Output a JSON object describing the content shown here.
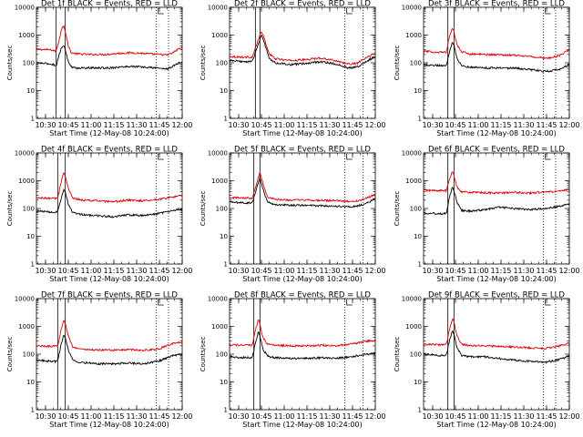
{
  "colors": {
    "events": "#000000",
    "lld": "#dd0000",
    "axes": "#000000"
  },
  "xlabel": "Start Time (12-May-08 10:24:00)",
  "ylabel": "Counts/sec",
  "chart_data": [
    {
      "type": "line",
      "title": "Det 1f BLACK = Events, RED = LLD",
      "xlabel": "Start Time (12-May-08 10:24:00)",
      "ylabel": "Counts/sec",
      "yscale": "log",
      "ylim": [
        1,
        10000
      ],
      "xlim_min_after_start": [
        0,
        96
      ],
      "yticks": [
        "1",
        "10",
        "100",
        "1000",
        "10000"
      ],
      "xticks": [
        "10:30",
        "10:45",
        "11:00",
        "11:15",
        "11:30",
        "11:45",
        "12:00"
      ],
      "marker_solid_min": [
        13,
        19
      ],
      "marker_dotted_min": [
        79,
        87
      ],
      "series": [
        {
          "color": "#dd0000",
          "x": [
            0,
            10,
            13,
            15,
            17,
            18,
            19,
            21,
            23,
            27,
            35,
            45,
            55,
            62,
            70,
            80,
            86,
            90,
            94,
            96
          ],
          "y": [
            310,
            290,
            260,
            700,
            2000,
            2200,
            1400,
            400,
            230,
            210,
            200,
            200,
            220,
            230,
            220,
            200,
            190,
            230,
            330,
            340
          ]
        },
        {
          "color": "#000000",
          "x": [
            0,
            10,
            13,
            15,
            17,
            18,
            19,
            21,
            23,
            27,
            35,
            45,
            55,
            62,
            70,
            80,
            86,
            90,
            94,
            96
          ],
          "y": [
            100,
            90,
            80,
            200,
            400,
            420,
            300,
            110,
            70,
            65,
            65,
            65,
            70,
            75,
            70,
            65,
            60,
            75,
            100,
            105
          ]
        }
      ]
    },
    {
      "type": "line",
      "title": "Det 2f BLACK = Events, RED = LLD",
      "xlabel": "Start Time (12-May-08 10:24:00)",
      "ylabel": "Counts/sec",
      "yscale": "log",
      "ylim": [
        1,
        10000
      ],
      "xlim_min_after_start": [
        0,
        96
      ],
      "yticks": [
        "1",
        "10",
        "100",
        "1000",
        "10000"
      ],
      "xticks": [
        "10:30",
        "10:45",
        "11:00",
        "11:15",
        "11:30",
        "11:45",
        "12:00"
      ],
      "marker_solid_min": [
        17,
        20
      ],
      "marker_dotted_min": [
        76,
        88
      ],
      "series": [
        {
          "color": "#dd0000",
          "x": [
            0,
            8,
            15,
            19,
            21,
            23,
            26,
            30,
            40,
            50,
            60,
            70,
            78,
            84,
            90,
            96
          ],
          "y": [
            170,
            160,
            160,
            700,
            1400,
            700,
            220,
            140,
            120,
            130,
            150,
            120,
            90,
            95,
            150,
            230
          ]
        },
        {
          "color": "#000000",
          "x": [
            0,
            8,
            15,
            19,
            21,
            23,
            26,
            30,
            40,
            50,
            60,
            70,
            78,
            84,
            90,
            96
          ],
          "y": [
            120,
            110,
            110,
            500,
            1000,
            500,
            150,
            100,
            85,
            95,
            110,
            90,
            65,
            70,
            110,
            170
          ]
        }
      ]
    },
    {
      "type": "line",
      "title": "Det 3f BLACK = Events, RED = LLD",
      "xlabel": "Start Time (12-May-08 10:24:00)",
      "ylabel": "Counts/sec",
      "yscale": "log",
      "ylim": [
        1,
        10000
      ],
      "xlim_min_after_start": [
        0,
        96
      ],
      "yticks": [
        "1",
        "10",
        "100",
        "1000",
        "10000"
      ],
      "xticks": [
        "10:30",
        "10:45",
        "11:00",
        "11:15",
        "11:30",
        "11:45",
        "12:00"
      ],
      "marker_solid_min": [
        16,
        20
      ],
      "marker_dotted_min": [
        79,
        87
      ],
      "series": [
        {
          "color": "#dd0000",
          "x": [
            0,
            10,
            15,
            17,
            19,
            20,
            22,
            25,
            30,
            40,
            50,
            60,
            70,
            78,
            84,
            90,
            96
          ],
          "y": [
            260,
            240,
            240,
            900,
            1800,
            1300,
            450,
            250,
            210,
            200,
            195,
            190,
            170,
            150,
            150,
            190,
            300
          ]
        },
        {
          "color": "#000000",
          "x": [
            0,
            10,
            15,
            17,
            19,
            20,
            22,
            25,
            30,
            40,
            50,
            60,
            70,
            78,
            84,
            90,
            96
          ],
          "y": [
            85,
            80,
            80,
            250,
            550,
            450,
            150,
            80,
            70,
            66,
            65,
            64,
            58,
            50,
            50,
            60,
            85
          ]
        }
      ]
    },
    {
      "type": "line",
      "title": "Det 4f BLACK = Events, RED = LLD",
      "xlabel": "Start Time (12-May-08 10:24:00)",
      "ylabel": "Counts/sec",
      "yscale": "log",
      "ylim": [
        1,
        10000
      ],
      "xlim_min_after_start": [
        0,
        96
      ],
      "yticks": [
        "1",
        "10",
        "100",
        "1000",
        "10000"
      ],
      "xticks": [
        "10:30",
        "10:45",
        "11:00",
        "11:15",
        "11:30",
        "11:45",
        "12:00"
      ],
      "marker_solid_min": [
        14,
        19
      ],
      "marker_dotted_min": [
        79,
        87
      ],
      "series": [
        {
          "color": "#dd0000",
          "x": [
            0,
            10,
            14,
            16,
            18,
            19,
            21,
            24,
            30,
            40,
            50,
            60,
            70,
            80,
            90,
            96
          ],
          "y": [
            240,
            230,
            230,
            800,
            2000,
            1500,
            500,
            240,
            200,
            190,
            170,
            200,
            190,
            210,
            260,
            290
          ]
        },
        {
          "color": "#000000",
          "x": [
            0,
            10,
            14,
            16,
            18,
            19,
            21,
            24,
            30,
            40,
            50,
            60,
            70,
            80,
            90,
            96
          ],
          "y": [
            80,
            75,
            75,
            200,
            500,
            400,
            140,
            70,
            60,
            55,
            50,
            60,
            55,
            65,
            85,
            95
          ]
        }
      ]
    },
    {
      "type": "line",
      "title": "Det 5f BLACK = Events, RED = LLD",
      "xlabel": "Start Time (12-May-08 10:24:00)",
      "ylabel": "Counts/sec",
      "yscale": "log",
      "ylim": [
        1,
        10000
      ],
      "xlim_min_after_start": [
        0,
        96
      ],
      "yticks": [
        "1",
        "10",
        "100",
        "1000",
        "10000"
      ],
      "xticks": [
        "10:30",
        "10:45",
        "11:00",
        "11:15",
        "11:30",
        "11:45",
        "12:00"
      ],
      "marker_solid_min": [
        16,
        20
      ],
      "marker_dotted_min": [
        76,
        88
      ],
      "series": [
        {
          "color": "#dd0000",
          "x": [
            0,
            8,
            15,
            18,
            20,
            22,
            25,
            30,
            40,
            50,
            60,
            70,
            78,
            84,
            90,
            96
          ],
          "y": [
            250,
            240,
            240,
            900,
            2000,
            800,
            260,
            210,
            200,
            200,
            195,
            190,
            180,
            185,
            230,
            330
          ]
        },
        {
          "color": "#000000",
          "x": [
            0,
            8,
            15,
            18,
            20,
            22,
            25,
            30,
            40,
            50,
            60,
            70,
            78,
            84,
            90,
            96
          ],
          "y": [
            170,
            160,
            160,
            600,
            1300,
            500,
            170,
            140,
            130,
            130,
            125,
            120,
            115,
            120,
            150,
            230
          ]
        }
      ]
    },
    {
      "type": "line",
      "title": "Det 6f BLACK = Events, RED = LLD",
      "xlabel": "Start Time (12-May-08 10:24:00)",
      "ylabel": "Counts/sec",
      "yscale": "log",
      "ylim": [
        1,
        10000
      ],
      "xlim_min_after_start": [
        0,
        96
      ],
      "yticks": [
        "1",
        "10",
        "100",
        "1000",
        "10000"
      ],
      "xticks": [
        "10:30",
        "10:45",
        "11:00",
        "11:15",
        "11:30",
        "11:45",
        "12:00"
      ],
      "marker_solid_min": [
        16,
        20
      ],
      "marker_dotted_min": [
        79,
        87
      ],
      "series": [
        {
          "color": "#dd0000",
          "x": [
            0,
            10,
            15,
            17,
            19,
            20,
            22,
            25,
            30,
            40,
            50,
            60,
            70,
            80,
            90,
            96
          ],
          "y": [
            450,
            440,
            440,
            1100,
            2200,
            1500,
            600,
            400,
            380,
            370,
            360,
            380,
            360,
            390,
            420,
            480
          ]
        },
        {
          "color": "#000000",
          "x": [
            0,
            10,
            15,
            17,
            19,
            20,
            22,
            25,
            30,
            40,
            50,
            60,
            70,
            80,
            90,
            96
          ],
          "y": [
            70,
            65,
            65,
            250,
            600,
            450,
            160,
            85,
            80,
            90,
            110,
            100,
            90,
            100,
            120,
            150
          ]
        }
      ]
    },
    {
      "type": "line",
      "title": "Det 7f BLACK = Events, RED = LLD",
      "xlabel": "Start Time (12-May-08 10:24:00)",
      "ylabel": "Counts/sec",
      "yscale": "log",
      "ylim": [
        1,
        10000
      ],
      "xlim_min_after_start": [
        0,
        96
      ],
      "yticks": [
        "1",
        "10",
        "100",
        "1000",
        "10000"
      ],
      "xticks": [
        "10:30",
        "10:45",
        "11:00",
        "11:15",
        "11:30",
        "11:45",
        "12:00"
      ],
      "marker_solid_min": [
        14,
        19
      ],
      "marker_dotted_min": [
        79,
        87
      ],
      "series": [
        {
          "color": "#dd0000",
          "x": [
            0,
            10,
            14,
            16,
            18,
            19,
            21,
            24,
            30,
            40,
            50,
            60,
            70,
            80,
            90,
            96
          ],
          "y": [
            200,
            190,
            190,
            700,
            1700,
            1300,
            450,
            180,
            150,
            140,
            140,
            145,
            140,
            150,
            240,
            270
          ]
        },
        {
          "color": "#000000",
          "x": [
            0,
            10,
            14,
            16,
            18,
            19,
            21,
            24,
            30,
            40,
            50,
            60,
            70,
            80,
            90,
            96
          ],
          "y": [
            60,
            55,
            55,
            200,
            500,
            400,
            140,
            60,
            50,
            45,
            45,
            48,
            45,
            55,
            90,
            100
          ]
        }
      ]
    },
    {
      "type": "line",
      "title": "Det 8f BLACK = Events, RED = LLD",
      "xlabel": "Start Time (12-May-08 10:24:00)",
      "ylabel": "Counts/sec",
      "yscale": "log",
      "ylim": [
        1,
        10000
      ],
      "xlim_min_after_start": [
        0,
        96
      ],
      "yticks": [
        "1",
        "10",
        "100",
        "1000",
        "10000"
      ],
      "xticks": [
        "10:30",
        "10:45",
        "11:00",
        "11:15",
        "11:30",
        "11:45",
        "12:00"
      ],
      "marker_solid_min": [
        16,
        20
      ],
      "marker_dotted_min": [
        76,
        88
      ],
      "series": [
        {
          "color": "#dd0000",
          "x": [
            0,
            8,
            15,
            17,
            19,
            20,
            22,
            25,
            30,
            40,
            50,
            60,
            70,
            80,
            90,
            96
          ],
          "y": [
            220,
            210,
            210,
            700,
            1800,
            1200,
            400,
            230,
            210,
            200,
            200,
            210,
            200,
            230,
            290,
            320
          ]
        },
        {
          "color": "#000000",
          "x": [
            0,
            8,
            15,
            17,
            19,
            20,
            22,
            25,
            30,
            40,
            50,
            60,
            70,
            80,
            90,
            96
          ],
          "y": [
            80,
            75,
            75,
            250,
            650,
            450,
            150,
            85,
            75,
            70,
            70,
            75,
            70,
            80,
            100,
            110
          ]
        }
      ]
    },
    {
      "type": "line",
      "title": "Det 9f BLACK = Events, RED = LLD",
      "xlabel": "Start Time (12-May-08 10:24:00)",
      "ylabel": "Counts/sec",
      "yscale": "log",
      "ylim": [
        1,
        10000
      ],
      "xlim_min_after_start": [
        0,
        96
      ],
      "yticks": [
        "1",
        "10",
        "100",
        "1000",
        "10000"
      ],
      "xticks": [
        "10:30",
        "10:45",
        "11:00",
        "11:15",
        "11:30",
        "11:45",
        "12:00"
      ],
      "marker_solid_min": [
        16,
        20
      ],
      "marker_dotted_min": [
        79,
        87
      ],
      "series": [
        {
          "color": "#dd0000",
          "x": [
            0,
            10,
            15,
            17,
            19,
            20,
            22,
            25,
            30,
            40,
            50,
            60,
            70,
            80,
            90,
            96
          ],
          "y": [
            230,
            220,
            220,
            800,
            1900,
            1400,
            450,
            230,
            200,
            200,
            190,
            180,
            170,
            160,
            200,
            250
          ]
        },
        {
          "color": "#000000",
          "x": [
            0,
            10,
            15,
            17,
            19,
            20,
            22,
            25,
            30,
            40,
            50,
            60,
            70,
            80,
            90,
            96
          ],
          "y": [
            100,
            90,
            90,
            300,
            700,
            500,
            170,
            90,
            80,
            80,
            70,
            60,
            55,
            50,
            65,
            85
          ]
        }
      ]
    }
  ]
}
